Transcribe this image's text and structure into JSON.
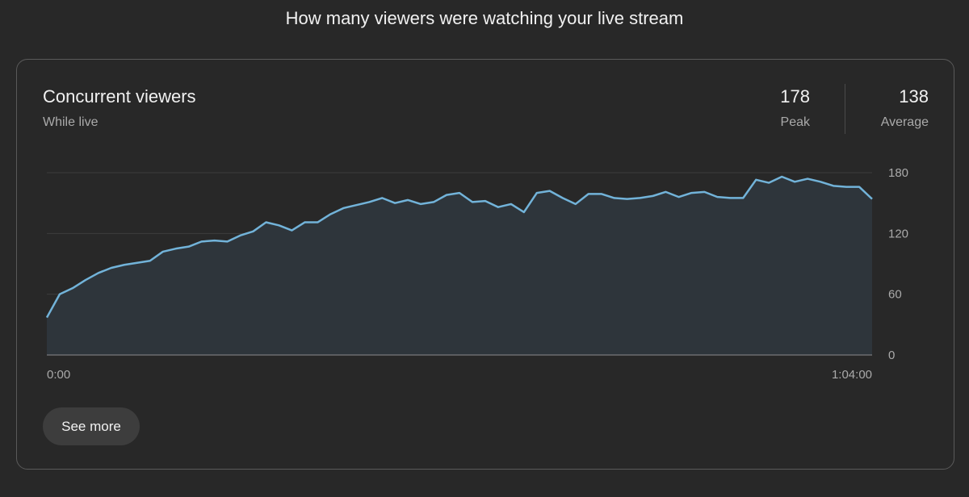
{
  "page": {
    "heading": "How many viewers were watching your live stream"
  },
  "card": {
    "title": "Concurrent viewers",
    "subtitle": "While live",
    "peak": {
      "value": "178",
      "label": "Peak"
    },
    "average": {
      "value": "138",
      "label": "Average"
    },
    "see_more_label": "See more"
  },
  "colors": {
    "line": "#72b3d9",
    "area": "#2e353b",
    "grid": "#3c3c3c",
    "axis": "#8c8c8c"
  },
  "chart_data": {
    "type": "area",
    "ylim": [
      0,
      180
    ],
    "y_ticks": [
      "180",
      "120",
      "60",
      "0"
    ],
    "x_ticks": [
      "0:00",
      "1:04:00"
    ],
    "grid": true,
    "series": [
      {
        "values": [
          37,
          60,
          66,
          74,
          81,
          86,
          89,
          91,
          93,
          102,
          105,
          107,
          112,
          113,
          112,
          118,
          122,
          131,
          128,
          123,
          131,
          131,
          139,
          145,
          148,
          151,
          155,
          150,
          153,
          149,
          151,
          158,
          160,
          151,
          152,
          146,
          149,
          141,
          160,
          162,
          155,
          149,
          159,
          159,
          155,
          154,
          155,
          157,
          161,
          156,
          160,
          161,
          156,
          155,
          155,
          173,
          170,
          176,
          171,
          174,
          171,
          167,
          166,
          166,
          154
        ]
      }
    ]
  }
}
